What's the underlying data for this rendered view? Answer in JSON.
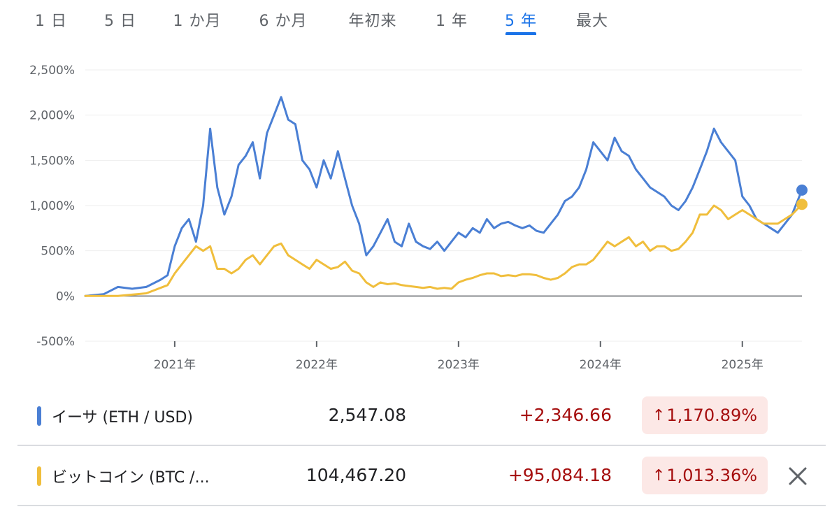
{
  "tabs": [
    {
      "label": "1 日",
      "active": false
    },
    {
      "label": "5 日",
      "active": false
    },
    {
      "label": "1 か月",
      "active": false
    },
    {
      "label": "6 か月",
      "active": false
    },
    {
      "label": "年初来",
      "active": false
    },
    {
      "label": "1 年",
      "active": false
    },
    {
      "label": "5 年",
      "active": true
    },
    {
      "label": "最大",
      "active": false
    }
  ],
  "chart_data": {
    "type": "line",
    "yticks": [
      "2,500%",
      "2,000%",
      "1,500%",
      "1,000%",
      "500%",
      "0%",
      "-500%"
    ],
    "ytick_values": [
      2500,
      2000,
      1500,
      1000,
      500,
      0,
      -500
    ],
    "xticks": [
      "2021年",
      "2022年",
      "2023年",
      "2024年",
      "2025年"
    ],
    "xtick_values": [
      2021.0,
      2022.0,
      2023.0,
      2024.0,
      2025.0
    ],
    "xlim": [
      2020.37,
      2025.42
    ],
    "ylim": [
      -500,
      2500
    ],
    "grid": true,
    "series": [
      {
        "name": "イーサ (ETH / USD)",
        "color": "#4a7fd4",
        "x": [
          2020.37,
          2020.5,
          2020.6,
          2020.7,
          2020.8,
          2020.9,
          2020.95,
          2021.0,
          2021.05,
          2021.1,
          2021.15,
          2021.2,
          2021.25,
          2021.3,
          2021.35,
          2021.4,
          2021.45,
          2021.5,
          2021.55,
          2021.6,
          2021.65,
          2021.7,
          2021.75,
          2021.8,
          2021.85,
          2021.9,
          2021.95,
          2022.0,
          2022.05,
          2022.1,
          2022.15,
          2022.2,
          2022.25,
          2022.3,
          2022.35,
          2022.4,
          2022.45,
          2022.5,
          2022.55,
          2022.6,
          2022.65,
          2022.7,
          2022.75,
          2022.8,
          2022.85,
          2022.9,
          2022.95,
          2023.0,
          2023.05,
          2023.1,
          2023.15,
          2023.2,
          2023.25,
          2023.3,
          2023.35,
          2023.4,
          2023.45,
          2023.5,
          2023.55,
          2023.6,
          2023.65,
          2023.7,
          2023.75,
          2023.8,
          2023.85,
          2023.9,
          2023.95,
          2024.0,
          2024.05,
          2024.1,
          2024.15,
          2024.2,
          2024.25,
          2024.3,
          2024.35,
          2024.4,
          2024.45,
          2024.5,
          2024.55,
          2024.6,
          2024.65,
          2024.7,
          2024.75,
          2024.8,
          2024.85,
          2024.9,
          2024.95,
          2025.0,
          2025.05,
          2025.1,
          2025.15,
          2025.2,
          2025.25,
          2025.3,
          2025.35,
          2025.42
        ],
        "y": [
          0,
          20,
          100,
          80,
          100,
          180,
          230,
          550,
          750,
          850,
          600,
          1000,
          1850,
          1200,
          900,
          1100,
          1450,
          1550,
          1700,
          1300,
          1800,
          2000,
          2200,
          1950,
          1900,
          1500,
          1400,
          1200,
          1500,
          1300,
          1600,
          1300,
          1000,
          800,
          450,
          550,
          700,
          850,
          600,
          550,
          800,
          600,
          550,
          520,
          600,
          500,
          600,
          700,
          650,
          750,
          700,
          850,
          750,
          800,
          820,
          780,
          750,
          780,
          720,
          700,
          800,
          900,
          1050,
          1100,
          1200,
          1400,
          1700,
          1600,
          1500,
          1750,
          1600,
          1550,
          1400,
          1300,
          1200,
          1150,
          1100,
          1000,
          950,
          1050,
          1200,
          1400,
          1600,
          1850,
          1700,
          1600,
          1500,
          1100,
          1000,
          850,
          800,
          750,
          700,
          800,
          900,
          1170.89
        ]
      },
      {
        "name": "ビットコイン (BTC /...",
        "color": "#f0be3c",
        "x": [
          2020.37,
          2020.6,
          2020.8,
          2020.95,
          2021.0,
          2021.05,
          2021.1,
          2021.15,
          2021.2,
          2021.25,
          2021.3,
          2021.35,
          2021.4,
          2021.45,
          2021.5,
          2021.55,
          2021.6,
          2021.65,
          2021.7,
          2021.75,
          2021.8,
          2021.85,
          2021.9,
          2021.95,
          2022.0,
          2022.05,
          2022.1,
          2022.15,
          2022.2,
          2022.25,
          2022.3,
          2022.35,
          2022.4,
          2022.45,
          2022.5,
          2022.55,
          2022.6,
          2022.65,
          2022.7,
          2022.75,
          2022.8,
          2022.85,
          2022.9,
          2022.95,
          2023.0,
          2023.05,
          2023.1,
          2023.15,
          2023.2,
          2023.25,
          2023.3,
          2023.35,
          2023.4,
          2023.45,
          2023.5,
          2023.55,
          2023.6,
          2023.65,
          2023.7,
          2023.75,
          2023.8,
          2023.85,
          2023.9,
          2023.95,
          2024.0,
          2024.05,
          2024.1,
          2024.15,
          2024.2,
          2024.25,
          2024.3,
          2024.35,
          2024.4,
          2024.45,
          2024.5,
          2024.55,
          2024.6,
          2024.65,
          2024.7,
          2024.75,
          2024.8,
          2024.85,
          2024.9,
          2024.95,
          2025.0,
          2025.05,
          2025.1,
          2025.15,
          2025.2,
          2025.25,
          2025.3,
          2025.35,
          2025.42
        ],
        "y": [
          0,
          0,
          30,
          120,
          250,
          350,
          450,
          550,
          500,
          550,
          300,
          300,
          250,
          300,
          400,
          450,
          350,
          450,
          550,
          580,
          450,
          400,
          350,
          300,
          400,
          350,
          300,
          320,
          380,
          280,
          250,
          150,
          100,
          150,
          130,
          140,
          120,
          110,
          100,
          90,
          100,
          80,
          90,
          80,
          150,
          180,
          200,
          230,
          250,
          250,
          220,
          230,
          220,
          240,
          240,
          230,
          200,
          180,
          200,
          250,
          320,
          350,
          350,
          400,
          500,
          600,
          550,
          600,
          650,
          550,
          600,
          500,
          550,
          550,
          500,
          520,
          600,
          700,
          900,
          900,
          1000,
          950,
          850,
          900,
          950,
          900,
          850,
          800,
          800,
          800,
          850,
          900,
          1013.36
        ]
      }
    ]
  },
  "rows": [
    {
      "name": "イーサ (ETH / USD)",
      "color": "#4a7fd4",
      "price": "2,547.08",
      "change": "+2,346.66",
      "pct": "1,170.89%",
      "arrow": "↑",
      "closable": false
    },
    {
      "name": "ビットコイン (BTC /...",
      "color": "#f0be3c",
      "price": "104,467.20",
      "change": "+95,084.18",
      "pct": "1,013.36%",
      "arrow": "↑",
      "closable": true
    }
  ]
}
